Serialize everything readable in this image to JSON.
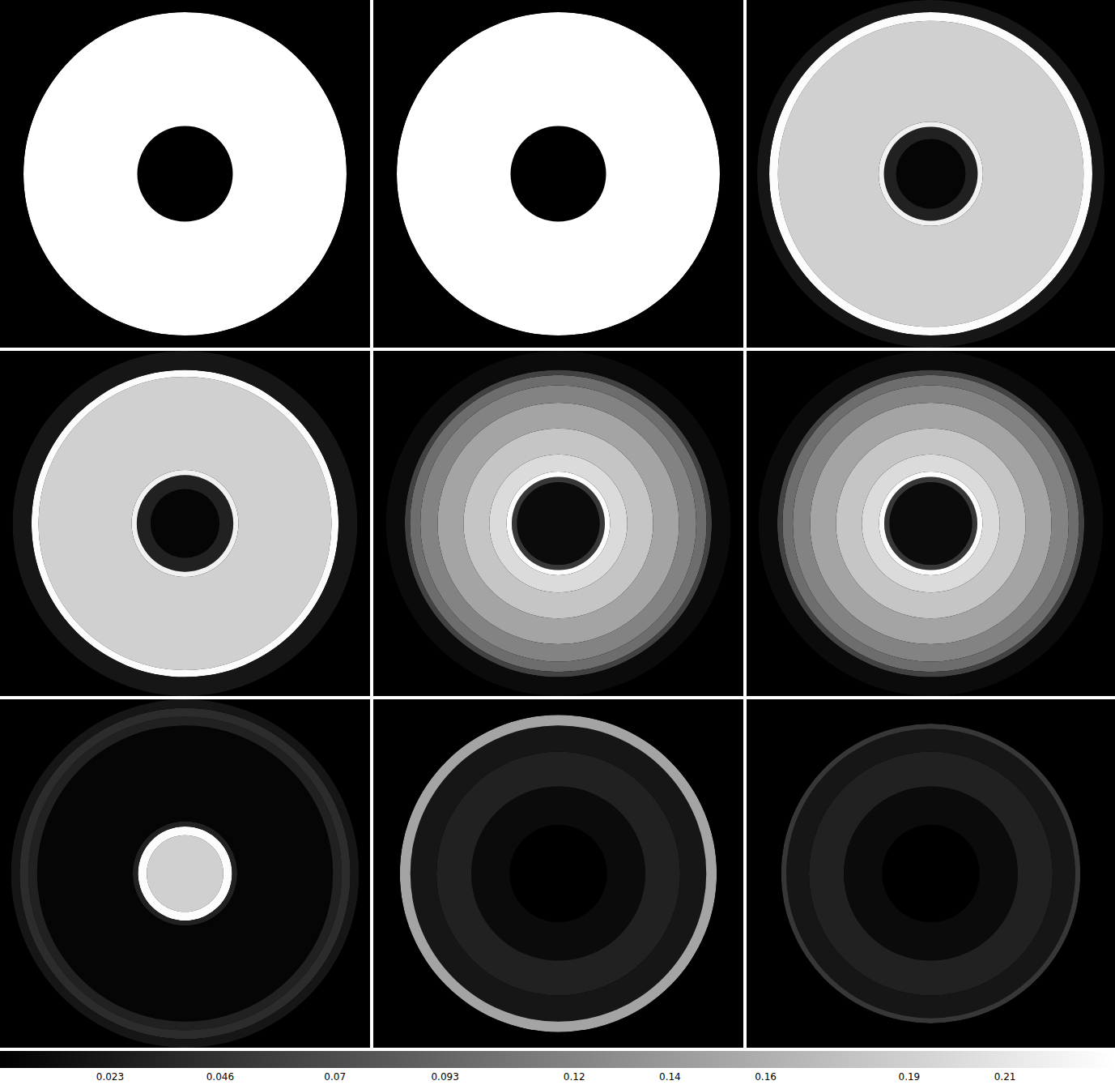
{
  "chart_data": {
    "type": "polar_rings",
    "tick_labels": false,
    "rlim": [
      0,
      1
    ],
    "colors": [
      "#000000",
      "#ffffff"
    ],
    "colorbar": {
      "range": [
        0,
        0.233
      ],
      "ticks": [
        0.023,
        0.046,
        0.07,
        0.093,
        0.12,
        0.14,
        0.16,
        0.19,
        0.21
      ]
    },
    "panels": [
      {
        "r_edges": [
          0,
          0.275,
          0.93,
          1
        ],
        "values": [
          0,
          0.233,
          0
        ]
      },
      {
        "r_edges": [
          0,
          0.275,
          0.93,
          1
        ],
        "values": [
          0,
          0.233,
          0
        ]
      },
      {
        "r_edges": [
          0,
          0.2,
          0.27,
          0.3,
          0.88,
          0.93,
          1
        ],
        "values": [
          0.005,
          0.03,
          0.22,
          0.19,
          0.23,
          0.02
        ]
      },
      {
        "r_edges": [
          0,
          0.2,
          0.28,
          0.31,
          0.85,
          0.89,
          1
        ],
        "values": [
          0.005,
          0.03,
          0.22,
          0.19,
          0.23,
          0.02
        ]
      },
      {
        "r_edges": [
          0,
          0.24,
          0.27,
          0.3,
          0.4,
          0.55,
          0.7,
          0.8,
          0.86,
          0.89,
          1
        ],
        "values": [
          0.01,
          0.05,
          0.23,
          0.2,
          0.18,
          0.15,
          0.12,
          0.1,
          0.06,
          0.01
        ]
      },
      {
        "r_edges": [
          0,
          0.24,
          0.27,
          0.3,
          0.4,
          0.55,
          0.7,
          0.8,
          0.86,
          0.89,
          1
        ],
        "values": [
          0.01,
          0.05,
          0.23,
          0.2,
          0.18,
          0.15,
          0.12,
          0.1,
          0.06,
          0.01
        ]
      },
      {
        "r_edges": [
          0,
          0.22,
          0.27,
          0.3,
          0.85,
          0.9,
          0.95,
          1
        ],
        "values": [
          0.19,
          0.23,
          0.03,
          0.005,
          0.03,
          0.04,
          0.02
        ]
      },
      {
        "r_edges": [
          0,
          0.28,
          0.5,
          0.7,
          0.85,
          0.91,
          1
        ],
        "values": [
          0,
          0.01,
          0.03,
          0.02,
          0.15,
          0
        ]
      },
      {
        "r_edges": [
          0,
          0.28,
          0.5,
          0.7,
          0.83,
          0.86,
          1
        ],
        "values": [
          0,
          0.01,
          0.03,
          0.02,
          0.05,
          0
        ]
      }
    ]
  }
}
